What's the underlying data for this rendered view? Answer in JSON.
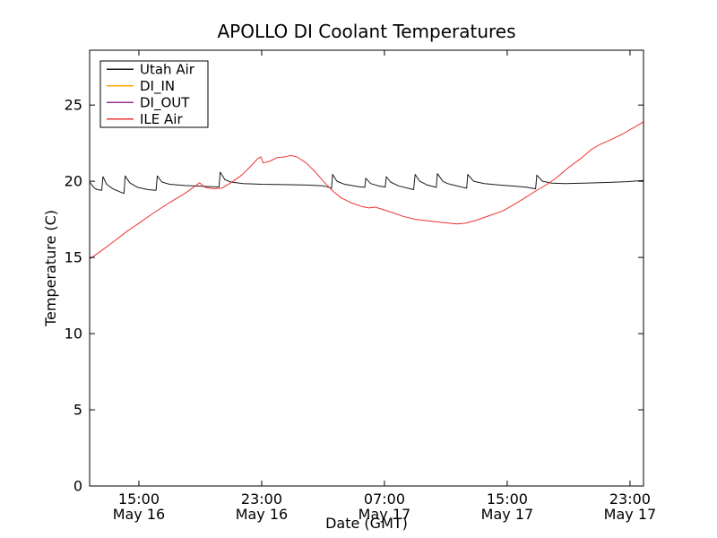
{
  "chart_data": {
    "type": "line",
    "title": "APOLLO DI Coolant Temperatures",
    "xlabel": "Date (GMT)",
    "ylabel": "Temperature (C)",
    "ylim": [
      0,
      28.6
    ],
    "yticks": [
      0,
      5,
      10,
      15,
      20,
      25
    ],
    "xlim_hours_since_may16_0000_gmt": [
      11.79,
      47.88
    ],
    "xticks": [
      {
        "hours": 15,
        "time": "15:00",
        "date": "May 16"
      },
      {
        "hours": 23,
        "time": "23:00",
        "date": "May 16"
      },
      {
        "hours": 31,
        "time": "07:00",
        "date": "May 17"
      },
      {
        "hours": 39,
        "time": "15:00",
        "date": "May 17"
      },
      {
        "hours": 47,
        "time": "23:00",
        "date": "May 17"
      }
    ],
    "grid": false,
    "legend_position": "upper left",
    "legend_entries": [
      "Utah Air",
      "DI_IN",
      "DI_OUT",
      "ILE Air"
    ],
    "series": [
      {
        "name": "Utah Air",
        "color": "#1a1a1a",
        "points": [
          [
            11.79,
            19.95
          ],
          [
            12.1,
            19.55
          ],
          [
            12.3,
            19.45
          ],
          [
            12.58,
            19.4
          ],
          [
            12.66,
            20.3
          ],
          [
            12.9,
            19.8
          ],
          [
            13.3,
            19.5
          ],
          [
            13.9,
            19.25
          ],
          [
            14.03,
            19.2
          ],
          [
            14.1,
            20.35
          ],
          [
            14.4,
            19.9
          ],
          [
            14.9,
            19.6
          ],
          [
            15.6,
            19.45
          ],
          [
            16.12,
            19.4
          ],
          [
            16.2,
            20.35
          ],
          [
            16.5,
            19.95
          ],
          [
            17.0,
            19.8
          ],
          [
            18.0,
            19.72
          ],
          [
            19.0,
            19.68
          ],
          [
            20.22,
            19.62
          ],
          [
            20.3,
            20.6
          ],
          [
            20.6,
            20.1
          ],
          [
            21.0,
            19.95
          ],
          [
            21.8,
            19.85
          ],
          [
            23.0,
            19.8
          ],
          [
            24.5,
            19.78
          ],
          [
            26.0,
            19.75
          ],
          [
            27.0,
            19.7
          ],
          [
            27.55,
            19.55
          ],
          [
            27.62,
            20.45
          ],
          [
            27.9,
            20.0
          ],
          [
            28.4,
            19.8
          ],
          [
            29.3,
            19.65
          ],
          [
            29.72,
            19.6
          ],
          [
            29.78,
            20.2
          ],
          [
            30.1,
            19.85
          ],
          [
            30.6,
            19.7
          ],
          [
            31.05,
            19.62
          ],
          [
            31.12,
            20.3
          ],
          [
            31.4,
            19.95
          ],
          [
            31.9,
            19.7
          ],
          [
            32.9,
            19.45
          ],
          [
            33.0,
            20.45
          ],
          [
            33.3,
            20.0
          ],
          [
            33.8,
            19.75
          ],
          [
            34.38,
            19.6
          ],
          [
            34.45,
            20.5
          ],
          [
            34.8,
            20.0
          ],
          [
            35.1,
            19.85
          ],
          [
            35.5,
            19.75
          ],
          [
            36.1,
            19.6
          ],
          [
            36.36,
            19.55
          ],
          [
            36.43,
            20.45
          ],
          [
            36.8,
            20.0
          ],
          [
            37.5,
            19.85
          ],
          [
            38.5,
            19.75
          ],
          [
            39.5,
            19.68
          ],
          [
            40.3,
            19.6
          ],
          [
            40.85,
            19.5
          ],
          [
            40.93,
            20.4
          ],
          [
            41.3,
            20.0
          ],
          [
            41.9,
            19.88
          ],
          [
            42.8,
            19.85
          ],
          [
            44.0,
            19.88
          ],
          [
            45.5,
            19.92
          ],
          [
            46.8,
            19.97
          ],
          [
            47.88,
            20.05
          ]
        ]
      },
      {
        "name": "DI_IN",
        "color": "#ffa500",
        "points": []
      },
      {
        "name": "DI_OUT",
        "color": "#993399",
        "points": []
      },
      {
        "name": "ILE Air",
        "color": "#ee3333",
        "points": [
          [
            11.79,
            14.9
          ],
          [
            12.5,
            15.4
          ],
          [
            13.3,
            16.0
          ],
          [
            14.2,
            16.7
          ],
          [
            15.0,
            17.25
          ],
          [
            16.0,
            17.95
          ],
          [
            17.0,
            18.6
          ],
          [
            18.0,
            19.2
          ],
          [
            18.7,
            19.7
          ],
          [
            18.95,
            19.9
          ],
          [
            19.3,
            19.6
          ],
          [
            19.9,
            19.5
          ],
          [
            20.4,
            19.55
          ],
          [
            21.0,
            19.9
          ],
          [
            21.7,
            20.4
          ],
          [
            22.3,
            21.0
          ],
          [
            22.75,
            21.5
          ],
          [
            22.95,
            21.6
          ],
          [
            23.1,
            21.2
          ],
          [
            23.5,
            21.3
          ],
          [
            24.0,
            21.55
          ],
          [
            24.5,
            21.6
          ],
          [
            24.9,
            21.7
          ],
          [
            25.3,
            21.6
          ],
          [
            25.9,
            21.2
          ],
          [
            26.5,
            20.6
          ],
          [
            27.1,
            19.9
          ],
          [
            27.7,
            19.3
          ],
          [
            28.2,
            18.9
          ],
          [
            28.8,
            18.6
          ],
          [
            29.5,
            18.35
          ],
          [
            30.0,
            18.25
          ],
          [
            30.4,
            18.3
          ],
          [
            30.9,
            18.15
          ],
          [
            31.5,
            17.95
          ],
          [
            32.2,
            17.7
          ],
          [
            33.0,
            17.5
          ],
          [
            33.8,
            17.4
          ],
          [
            34.7,
            17.3
          ],
          [
            35.7,
            17.2
          ],
          [
            36.3,
            17.25
          ],
          [
            37.0,
            17.45
          ],
          [
            38.0,
            17.8
          ],
          [
            38.7,
            18.05
          ],
          [
            39.5,
            18.5
          ],
          [
            40.3,
            19.0
          ],
          [
            41.0,
            19.45
          ],
          [
            41.6,
            19.8
          ],
          [
            42.3,
            20.3
          ],
          [
            43.0,
            20.9
          ],
          [
            43.8,
            21.5
          ],
          [
            44.5,
            22.1
          ],
          [
            45.0,
            22.4
          ],
          [
            45.8,
            22.75
          ],
          [
            46.5,
            23.1
          ],
          [
            47.2,
            23.5
          ],
          [
            47.88,
            23.9
          ]
        ]
      }
    ]
  }
}
